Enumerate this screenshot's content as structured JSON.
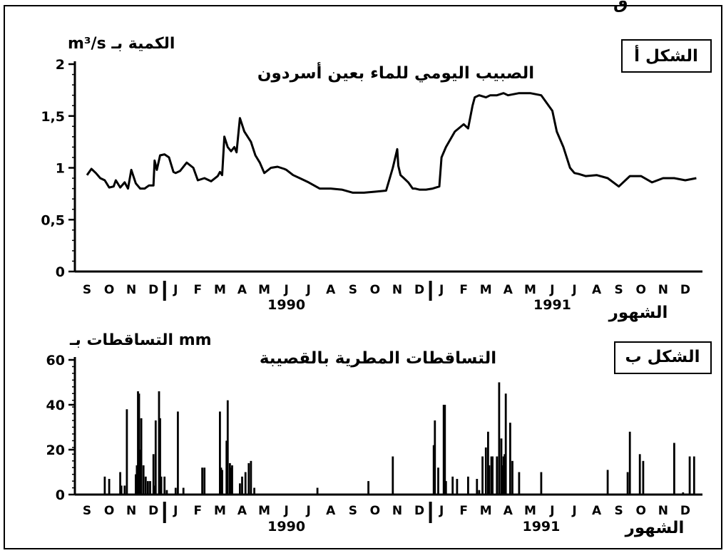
{
  "chart_data": [
    {
      "type": "line",
      "panel_label": "الشكل أ",
      "title": "الصبيب اليومي للماء بعين أسردون",
      "ylabel": "m³/s الكمية بـ",
      "xlabel": "الشهور",
      "ylim": [
        0,
        2
      ],
      "yticks": [
        "0",
        "0,5",
        "1",
        "1,5",
        "2"
      ],
      "months": [
        "S",
        "O",
        "N",
        "D",
        "J",
        "F",
        "M",
        "A",
        "M",
        "J",
        "J",
        "A",
        "S",
        "O",
        "N",
        "D",
        "J",
        "F",
        "M",
        "A",
        "M",
        "J",
        "J",
        "A",
        "S",
        "O",
        "N",
        "D"
      ],
      "years": [
        "1990",
        "1991"
      ],
      "x": [
        0,
        0.2,
        0.4,
        0.6,
        0.8,
        1,
        1.2,
        1.3,
        1.5,
        1.7,
        1.85,
        2,
        2.2,
        2.4,
        2.6,
        2.8,
        3,
        3.05,
        3.15,
        3.3,
        3.5,
        3.7,
        3.9,
        4,
        4.2,
        4.5,
        4.8,
        5,
        5.3,
        5.6,
        5.9,
        6,
        6.1,
        6.2,
        6.35,
        6.5,
        6.65,
        6.75,
        6.9,
        7.1,
        7.4,
        7.6,
        7.8,
        8,
        8.3,
        8.6,
        8.9,
        9,
        9.3,
        9.6,
        10,
        10.5,
        11,
        11.5,
        12,
        12.5,
        13,
        13.5,
        13.8,
        14,
        14.05,
        14.15,
        14.3,
        14.5,
        14.7,
        14.8,
        15,
        15.3,
        15.6,
        15.9,
        16,
        16.2,
        16.6,
        17,
        17.2,
        17.4,
        17.5,
        17.7,
        18,
        18.2,
        18.5,
        18.8,
        19,
        19.5,
        20,
        20.5,
        21,
        21.2,
        21.5,
        21.8,
        22,
        22.2,
        22.5,
        23,
        23.5,
        24,
        24.5,
        25,
        25.5,
        26,
        26.5,
        27,
        27.5
      ],
      "y": [
        0.93,
        0.99,
        0.95,
        0.9,
        0.88,
        0.81,
        0.82,
        0.88,
        0.81,
        0.86,
        0.8,
        0.98,
        0.85,
        0.8,
        0.8,
        0.83,
        0.83,
        1.07,
        0.98,
        1.12,
        1.13,
        1.1,
        0.96,
        0.95,
        0.97,
        1.05,
        1.0,
        0.88,
        0.9,
        0.87,
        0.92,
        0.96,
        0.93,
        1.3,
        1.2,
        1.16,
        1.2,
        1.15,
        1.48,
        1.35,
        1.25,
        1.12,
        1.05,
        0.95,
        1.0,
        1.01,
        0.99,
        0.98,
        0.93,
        0.9,
        0.86,
        0.8,
        0.8,
        0.79,
        0.76,
        0.76,
        0.77,
        0.78,
        1.0,
        1.18,
        1.02,
        0.93,
        0.9,
        0.86,
        0.8,
        0.8,
        0.79,
        0.79,
        0.8,
        0.82,
        1.1,
        1.2,
        1.35,
        1.42,
        1.38,
        1.6,
        1.68,
        1.7,
        1.68,
        1.7,
        1.7,
        1.72,
        1.7,
        1.72,
        1.72,
        1.7,
        1.55,
        1.35,
        1.2,
        1.0,
        0.95,
        0.94,
        0.92,
        0.93,
        0.9,
        0.82,
        0.92,
        0.92,
        0.86,
        0.9,
        0.9,
        0.88,
        0.9
      ]
    },
    {
      "type": "bar",
      "panel_label": "الشكل ب",
      "title": "التساقطات المطرية بالقصيبة",
      "ylabel": "التساقطات بـ mm",
      "xlabel": "الشهور",
      "ylim": [
        0,
        60
      ],
      "yticks": [
        "0",
        "20",
        "40",
        "60"
      ],
      "months": [
        "S",
        "O",
        "N",
        "D",
        "J",
        "F",
        "M",
        "A",
        "M",
        "J",
        "J",
        "A",
        "S",
        "O",
        "N",
        "D",
        "J",
        "F",
        "M",
        "A",
        "M",
        "J",
        "J",
        "A",
        "S",
        "O",
        "N",
        "D"
      ],
      "years": [
        "1990",
        "1991"
      ],
      "x": [
        0.8,
        1,
        1.5,
        1.55,
        1.7,
        1.8,
        2.2,
        2.25,
        2.3,
        2.35,
        2.4,
        2.45,
        2.55,
        2.65,
        2.75,
        2.85,
        3,
        3.05,
        3.1,
        3.25,
        3.3,
        3.35,
        3.5,
        3.6,
        4,
        4.1,
        4.35,
        5.2,
        5.3,
        6,
        6.05,
        6.1,
        6.3,
        6.35,
        6.45,
        6.5,
        6.55,
        6.9,
        7,
        7.15,
        7.3,
        7.4,
        7.55,
        10.4,
        12.7,
        13.8,
        15.65,
        15.7,
        15.85,
        16.1,
        16.15,
        16.2,
        16.5,
        16.7,
        17.2,
        17.6,
        17.7,
        17.85,
        18,
        18.1,
        18.15,
        18.25,
        18.3,
        18.5,
        18.6,
        18.7,
        18.75,
        18.8,
        18.85,
        18.9,
        19.1,
        19.2,
        19.5,
        20.5,
        23.5,
        24.4,
        24.5,
        24.95,
        25.1,
        26.5,
        26.9,
        27.2,
        27.4
      ],
      "values": [
        8,
        7,
        10,
        4,
        4,
        38,
        9,
        13,
        46,
        45,
        20,
        34,
        13,
        8,
        6,
        6,
        18,
        4,
        33,
        46,
        34,
        8,
        8,
        2,
        3,
        37,
        3,
        12,
        12,
        37,
        12,
        11,
        24,
        42,
        14,
        12,
        13,
        5,
        8,
        10,
        14,
        15,
        3,
        3,
        6,
        17,
        22,
        33,
        12,
        40,
        40,
        6,
        8,
        7,
        8,
        7,
        2,
        17,
        21,
        28,
        13,
        17,
        17,
        17,
        50,
        25,
        13,
        17,
        18,
        45,
        32,
        15,
        10,
        10,
        11,
        10,
        28,
        18,
        15,
        23,
        1,
        17,
        17
      ]
    }
  ]
}
